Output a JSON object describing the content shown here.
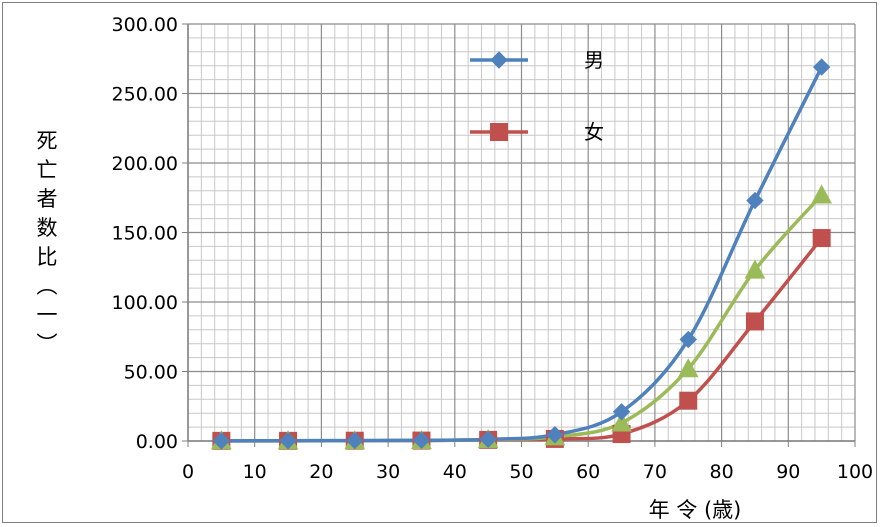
{
  "chart_data": {
    "type": "line",
    "xlabel": "年 令 (歳)",
    "ylabel": "死亡者数比 (一)",
    "xlim": [
      0,
      100
    ],
    "ylim": [
      0,
      300
    ],
    "x_ticks": [
      "0",
      "10",
      "20",
      "30",
      "40",
      "50",
      "60",
      "70",
      "80",
      "90",
      "100"
    ],
    "y_ticks": [
      "0.00",
      "50.00",
      "100.00",
      "150.00",
      "200.00",
      "250.00",
      "300.00"
    ],
    "grid": true,
    "legend_position": "top-center",
    "x": [
      5,
      15,
      25,
      35,
      45,
      55,
      65,
      75,
      85,
      95
    ],
    "series": [
      {
        "name": "男",
        "color": "#4f81bd",
        "marker": "diamond",
        "values": [
          0.1,
          0.2,
          0.3,
          0.5,
          1.2,
          4.5,
          21.0,
          73.0,
          173.0,
          269.0
        ]
      },
      {
        "name": "女",
        "color": "#c0504d",
        "marker": "square",
        "values": [
          0.1,
          0.1,
          0.2,
          0.3,
          0.8,
          1.5,
          5.0,
          29.0,
          86.0,
          146.0
        ]
      },
      {
        "name": "",
        "color": "#9bbb59",
        "marker": "triangle",
        "values": [
          0.1,
          0.15,
          0.25,
          0.4,
          1.0,
          3.0,
          13.0,
          52.0,
          123.0,
          177.0
        ]
      }
    ]
  }
}
